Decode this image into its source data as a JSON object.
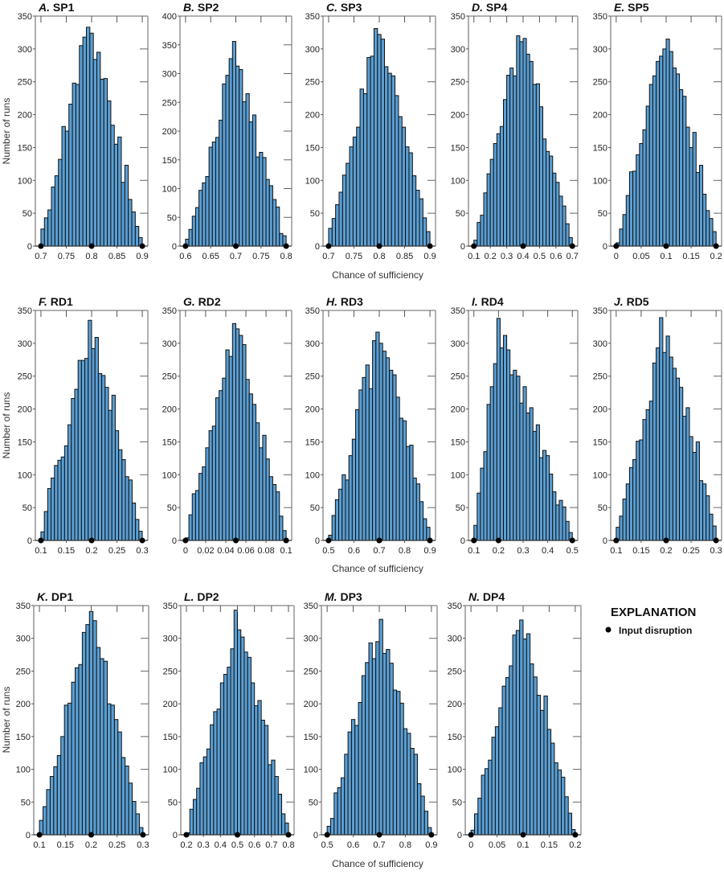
{
  "chart_data": [
    {
      "type": "bar",
      "letter": "A.",
      "title": "SP1",
      "xticks": [
        0.7,
        0.75,
        0.8,
        0.85,
        0.9
      ],
      "ylim": [
        0,
        350
      ],
      "disruptions": [
        0.7,
        0.8,
        0.9
      ],
      "values": [
        26,
        43,
        55,
        90,
        107,
        132,
        182,
        175,
        216,
        248,
        246,
        305,
        318,
        333,
        324,
        284,
        295,
        254,
        255,
        221,
        184,
        155,
        166,
        97,
        123,
        71,
        52,
        30,
        13
      ]
    },
    {
      "type": "bar",
      "letter": "B.",
      "title": "SP2",
      "xticks": [
        0.6,
        0.65,
        0.7,
        0.75,
        0.8
      ],
      "ylim": [
        0,
        400
      ],
      "disruptions": [
        0.6,
        0.7,
        0.8
      ],
      "values": [
        12,
        29,
        52,
        67,
        97,
        110,
        121,
        172,
        181,
        189,
        219,
        282,
        297,
        326,
        356,
        313,
        307,
        251,
        265,
        216,
        228,
        155,
        163,
        154,
        116,
        105,
        81,
        68,
        22,
        18
      ]
    },
    {
      "type": "bar",
      "letter": "C.",
      "title": "SP3",
      "xticks": [
        0.7,
        0.75,
        0.8,
        0.85,
        0.9
      ],
      "ylim": [
        0,
        350
      ],
      "disruptions": [
        0.7,
        0.8,
        0.9
      ],
      "values": [
        27,
        42,
        63,
        82,
        108,
        126,
        151,
        166,
        181,
        239,
        232,
        287,
        289,
        331,
        322,
        315,
        273,
        263,
        259,
        229,
        197,
        181,
        151,
        142,
        107,
        85,
        72,
        43,
        22
      ]
    },
    {
      "type": "bar",
      "letter": "D.",
      "title": "SP4",
      "xticks": [
        0.1,
        0.2,
        0.3,
        0.4,
        0.5,
        0.6,
        0.7
      ],
      "ylim": [
        0,
        350
      ],
      "disruptions": [
        0.1,
        0.4,
        0.7
      ],
      "values": [
        9,
        36,
        47,
        81,
        110,
        132,
        156,
        171,
        182,
        223,
        260,
        271,
        259,
        320,
        311,
        316,
        292,
        281,
        246,
        247,
        212,
        163,
        144,
        137,
        111,
        97,
        76,
        61,
        34,
        13
      ]
    },
    {
      "type": "bar",
      "letter": "E.",
      "title": "SP5",
      "xticks": [
        0,
        0.05,
        0.1,
        0.15,
        0.2
      ],
      "ylim": [
        0,
        350
      ],
      "disruptions": [
        0,
        0.1,
        0.2
      ],
      "values": [
        5,
        26,
        48,
        77,
        113,
        114,
        139,
        156,
        177,
        213,
        246,
        259,
        281,
        289,
        300,
        315,
        296,
        271,
        262,
        238,
        228,
        181,
        150,
        173,
        112,
        123,
        79,
        54,
        42,
        22
      ]
    },
    {
      "type": "bar",
      "letter": "F.",
      "title": "RD1",
      "xticks": [
        0.1,
        0.15,
        0.2,
        0.25,
        0.3
      ],
      "ylim": [
        0,
        350
      ],
      "disruptions": [
        0.1,
        0.2,
        0.3
      ],
      "values": [
        13,
        44,
        79,
        95,
        114,
        122,
        127,
        144,
        176,
        216,
        230,
        274,
        274,
        277,
        335,
        292,
        309,
        254,
        251,
        233,
        198,
        221,
        167,
        138,
        123,
        97,
        92,
        57,
        32,
        14
      ]
    },
    {
      "type": "bar",
      "letter": "G.",
      "title": "RD2",
      "xticks": [
        0,
        0.02,
        0.04,
        0.06,
        0.08,
        0.1
      ],
      "ylim": [
        0,
        350
      ],
      "disruptions": [
        0,
        0.05,
        0.1
      ],
      "values": [
        4,
        39,
        71,
        76,
        102,
        112,
        141,
        167,
        174,
        217,
        228,
        247,
        290,
        280,
        330,
        322,
        312,
        298,
        245,
        223,
        207,
        179,
        141,
        160,
        124,
        97,
        85,
        74,
        37,
        15
      ]
    },
    {
      "type": "bar",
      "letter": "H.",
      "title": "RD3",
      "xticks": [
        0.5,
        0.6,
        0.7,
        0.8,
        0.9
      ],
      "ylim": [
        0,
        350
      ],
      "disruptions": [
        0.5,
        0.7,
        0.9
      ],
      "values": [
        8,
        38,
        62,
        78,
        100,
        92,
        129,
        154,
        199,
        229,
        248,
        267,
        231,
        304,
        317,
        300,
        288,
        278,
        259,
        252,
        218,
        186,
        182,
        143,
        145,
        95,
        86,
        59,
        33,
        20
      ]
    },
    {
      "type": "bar",
      "letter": "I.",
      "title": "RD4",
      "xticks": [
        0.1,
        0.2,
        0.3,
        0.4,
        0.5
      ],
      "ylim": [
        0,
        350
      ],
      "disruptions": [
        0.1,
        0.2,
        0.5
      ],
      "values": [
        23,
        72,
        110,
        135,
        207,
        234,
        269,
        338,
        293,
        312,
        290,
        252,
        259,
        250,
        209,
        234,
        194,
        202,
        166,
        176,
        126,
        137,
        129,
        101,
        74,
        54,
        61,
        51,
        29,
        12
      ]
    },
    {
      "type": "bar",
      "letter": "J.",
      "title": "RD5",
      "xticks": [
        0.1,
        0.15,
        0.2,
        0.25,
        0.3
      ],
      "ylim": [
        0,
        350
      ],
      "disruptions": [
        0.1,
        0.2,
        0.3
      ],
      "values": [
        20,
        37,
        63,
        86,
        111,
        123,
        151,
        153,
        184,
        199,
        212,
        270,
        293,
        339,
        286,
        311,
        279,
        262,
        247,
        233,
        189,
        202,
        158,
        134,
        150,
        91,
        86,
        68,
        40,
        22
      ]
    },
    {
      "type": "bar",
      "letter": "K.",
      "title": "DP1",
      "xticks": [
        0.1,
        0.15,
        0.2,
        0.25,
        0.3
      ],
      "ylim": [
        0,
        350
      ],
      "disruptions": [
        0.1,
        0.2,
        0.3
      ],
      "values": [
        22,
        43,
        69,
        89,
        104,
        121,
        150,
        198,
        201,
        233,
        255,
        260,
        309,
        321,
        341,
        327,
        286,
        269,
        265,
        200,
        198,
        176,
        157,
        118,
        105,
        79,
        51,
        32,
        11
      ]
    },
    {
      "type": "bar",
      "letter": "L.",
      "title": "DP2",
      "xticks": [
        0.2,
        0.3,
        0.4,
        0.5,
        0.6,
        0.7,
        0.8
      ],
      "ylim": [
        0,
        350
      ],
      "disruptions": [
        0.2,
        0.5,
        0.8
      ],
      "values": [
        3,
        39,
        54,
        71,
        110,
        119,
        131,
        168,
        188,
        192,
        232,
        245,
        256,
        284,
        343,
        313,
        302,
        279,
        271,
        232,
        197,
        205,
        175,
        167,
        107,
        114,
        89,
        62,
        32,
        18
      ]
    },
    {
      "type": "bar",
      "letter": "M.",
      "title": "DP3",
      "xticks": [
        0.5,
        0.6,
        0.7,
        0.8,
        0.9
      ],
      "ylim": [
        0,
        350
      ],
      "disruptions": [
        0.5,
        0.7,
        0.9
      ],
      "values": [
        13,
        25,
        64,
        72,
        87,
        123,
        157,
        176,
        167,
        202,
        243,
        263,
        293,
        269,
        295,
        329,
        277,
        283,
        262,
        221,
        219,
        201,
        162,
        155,
        132,
        123,
        78,
        59,
        36,
        11
      ]
    },
    {
      "type": "bar",
      "letter": "N.",
      "title": "DP4",
      "xticks": [
        0,
        0.05,
        0.1,
        0.15,
        0.2
      ],
      "ylim": [
        0,
        350
      ],
      "disruptions": [
        0,
        0.1,
        0.2
      ],
      "values": [
        7,
        32,
        56,
        91,
        101,
        114,
        149,
        165,
        194,
        227,
        240,
        258,
        305,
        312,
        328,
        299,
        307,
        261,
        241,
        213,
        190,
        212,
        161,
        140,
        110,
        99,
        88,
        58,
        33,
        8
      ]
    }
  ],
  "xlabel": "Chance of sufficiency",
  "ylabel": "Number of runs",
  "explanation": {
    "title": "EXPLANATION",
    "item": "Input disruption"
  },
  "colors": {
    "bar": "#5a9fd4",
    "bar_edge": "#111111",
    "frame": "#999999",
    "marker": "#000000"
  }
}
